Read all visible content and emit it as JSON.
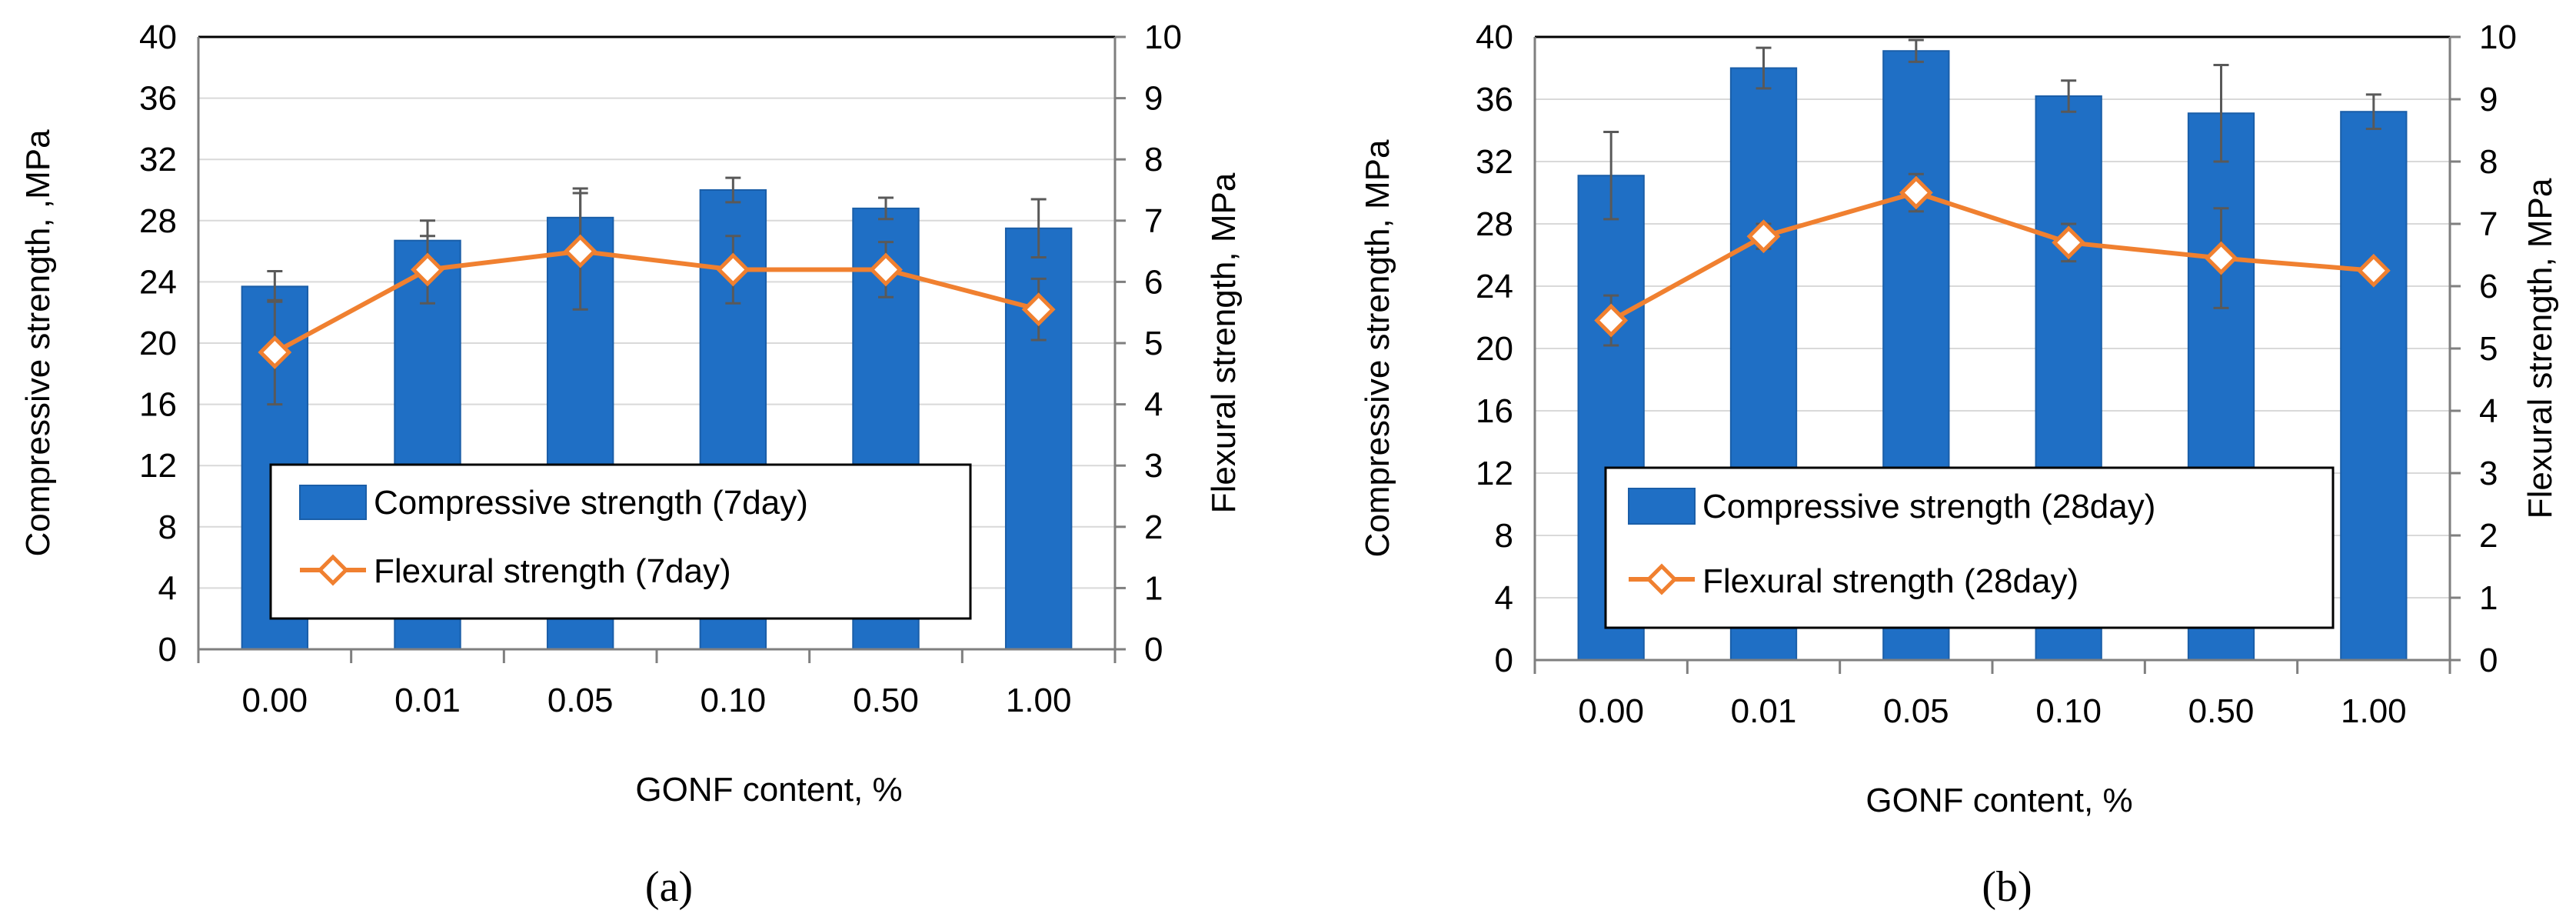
{
  "colors": {
    "bar": "#1F6FC5",
    "bar_stroke": "#1A5EA8",
    "line": "#F08030",
    "grid": "#D9D9D9",
    "axis": "#7F7F7F",
    "error": "#595959"
  },
  "chart_data": [
    {
      "panel": "(a)",
      "type": "bar",
      "categories": [
        "0.00",
        "0.01",
        "0.05",
        "0.10",
        "0.50",
        "1.00"
      ],
      "xlabel": "GONF content, %",
      "ylabel": "Compressive strength, ,MPa",
      "y2label": "Flexural strength, MPa",
      "ylim": [
        0,
        40
      ],
      "y2lim": [
        0,
        10
      ],
      "yticks": [
        "0",
        "4",
        "8",
        "12",
        "16",
        "20",
        "24",
        "28",
        "32",
        "36",
        "40"
      ],
      "y2ticks": [
        "0",
        "1",
        "2",
        "3",
        "4",
        "5",
        "6",
        "7",
        "8",
        "9",
        "10"
      ],
      "legend_position": "bottom-center",
      "series": [
        {
          "name": "Compressive strength (7day)",
          "type": "bar",
          "axis": "left",
          "values": [
            23.7,
            26.7,
            28.2,
            30.0,
            28.8,
            27.5
          ],
          "error": [
            1.0,
            1.3,
            1.9,
            0.8,
            0.7,
            1.9
          ]
        },
        {
          "name": "Flexural strength (7day)",
          "type": "line",
          "axis": "right",
          "values": [
            4.85,
            6.2,
            6.5,
            6.2,
            6.2,
            5.55
          ],
          "error": [
            0.85,
            0.55,
            0.95,
            0.55,
            0.45,
            0.5
          ]
        }
      ]
    },
    {
      "panel": "(b)",
      "type": "bar",
      "categories": [
        "0.00",
        "0.01",
        "0.05",
        "0.10",
        "0.50",
        "1.00"
      ],
      "xlabel": "GONF content, %",
      "ylabel": "Compressive strength, MPa",
      "y2label": "Flexural strength, MPa",
      "ylim": [
        0,
        40
      ],
      "y2lim": [
        0,
        10
      ],
      "yticks": [
        "0",
        "4",
        "8",
        "12",
        "16",
        "20",
        "24",
        "28",
        "32",
        "36",
        "40"
      ],
      "y2ticks": [
        "0",
        "1",
        "2",
        "3",
        "4",
        "5",
        "6",
        "7",
        "8",
        "9",
        "10"
      ],
      "legend_position": "bottom-center",
      "series": [
        {
          "name": "Compressive strength (28day)",
          "type": "bar",
          "axis": "left",
          "values": [
            31.1,
            38.0,
            39.1,
            36.2,
            35.1,
            35.2
          ],
          "error": [
            2.8,
            1.3,
            0.7,
            1.0,
            3.1,
            1.1
          ]
        },
        {
          "name": "Flexural strength (28day)",
          "type": "line",
          "axis": "right",
          "values": [
            5.45,
            6.8,
            7.5,
            6.7,
            6.45,
            6.25
          ],
          "error": [
            0.4,
            0.2,
            0.3,
            0.3,
            0.8,
            0.05
          ]
        }
      ]
    }
  ]
}
